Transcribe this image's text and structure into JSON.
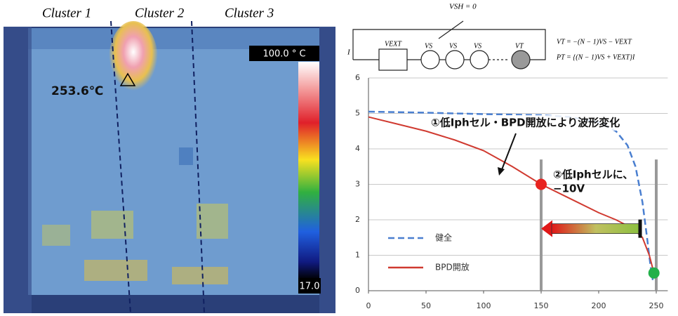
{
  "thermal_image": {
    "clusters": [
      "Cluster 1",
      "Cluster 2",
      "Cluster 3"
    ],
    "scale_max": "100.0 ° C",
    "scale_min": "17.0",
    "hotspot": "253.6℃"
  },
  "circuit": {
    "bypass": "VSH = 0",
    "current": "I",
    "source": "VEXT",
    "cells": [
      "VS",
      "VS",
      "VS",
      "VT"
    ],
    "eq_voltage": "VT = −(N − 1)VS − VEXT",
    "eq_power": "PT = {(N − 1)VS + VEXT}I"
  },
  "chart_data": {
    "type": "line",
    "xlim": [
      0,
      260
    ],
    "ylim": [
      0,
      6
    ],
    "xticks": [
      0,
      50,
      100,
      150,
      200,
      250
    ],
    "yticks": [
      0,
      1,
      2,
      3,
      4,
      5,
      6
    ],
    "grid": true,
    "legend": "lower left",
    "series": [
      {
        "name": "健全",
        "color": "#4a7fd0",
        "dash": true,
        "x": [
          0,
          50,
          100,
          150,
          175,
          200,
          215,
          225,
          232,
          238,
          242,
          245,
          247
        ],
        "values": [
          5.05,
          5.02,
          4.98,
          4.95,
          4.9,
          4.75,
          4.5,
          4.1,
          3.5,
          2.5,
          1.5,
          0.7,
          0.3
        ]
      },
      {
        "name": "BPD開放",
        "color": "#d03a30",
        "dash": false,
        "x": [
          0,
          25,
          50,
          75,
          100,
          125,
          150,
          175,
          200,
          215,
          230,
          238,
          244,
          248
        ],
        "values": [
          4.9,
          4.7,
          4.5,
          4.25,
          3.95,
          3.5,
          3.0,
          2.6,
          2.2,
          2.0,
          1.75,
          1.5,
          1.0,
          0.5
        ]
      }
    ],
    "highlights": [
      {
        "x": 150,
        "y": 3,
        "color": "#e8231f"
      },
      {
        "x": 248,
        "y": 0.5,
        "color": "#22b04a"
      }
    ],
    "vlines": [
      150,
      250
    ],
    "arrow": {
      "from": 236,
      "to": 150,
      "y": 1.75
    },
    "annotations": [
      "①低Iphセル・BPD開放により波形変化",
      "②低Iphセルに、",
      "−10V"
    ]
  }
}
